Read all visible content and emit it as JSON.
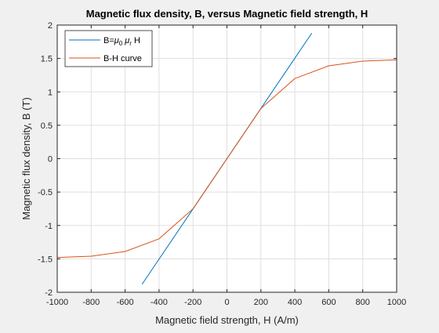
{
  "chart_data": {
    "type": "line",
    "title": "Magnetic flux density, B, versus Magnetic field strength, H",
    "xlabel": "Magnetic field strength, H (A/m)",
    "ylabel": "Magnetic flux density, B (T)",
    "xlim": [
      -1000,
      1000
    ],
    "ylim": [
      -2,
      2
    ],
    "xticks": [
      -1000,
      -800,
      -600,
      -400,
      -200,
      0,
      200,
      400,
      600,
      800,
      1000
    ],
    "yticks": [
      -2,
      -1.5,
      -1,
      -0.5,
      0,
      0.5,
      1,
      1.5,
      2
    ],
    "xtick_labels": [
      "-1000",
      "-800",
      "-600",
      "-400",
      "-200",
      "0",
      "200",
      "400",
      "600",
      "800",
      "1000"
    ],
    "ytick_labels": [
      "-2",
      "-1.5",
      "-1",
      "-0.5",
      "0",
      "0.5",
      "1",
      "1.5",
      "2"
    ],
    "grid": true,
    "legend_position": "top-left",
    "series": [
      {
        "name": "B=μ0 μr H",
        "color": "#0072BD",
        "x": [
          -500,
          500
        ],
        "y": [
          -1.88,
          1.88
        ]
      },
      {
        "name": "B-H curve",
        "color": "#D95319",
        "x": [
          -1000,
          -800,
          -600,
          -400,
          -200,
          0,
          200,
          400,
          600,
          800,
          1000
        ],
        "y": [
          -1.48,
          -1.46,
          -1.39,
          -1.2,
          -0.75,
          0,
          0.75,
          1.2,
          1.39,
          1.46,
          1.48
        ]
      }
    ]
  },
  "legend": {
    "linear_prefix": "B=",
    "mu": "μ",
    "mu0_sub": "0",
    "mur_sub": "r",
    "linear_suffix": "H",
    "bh_label": "B-H curve"
  }
}
